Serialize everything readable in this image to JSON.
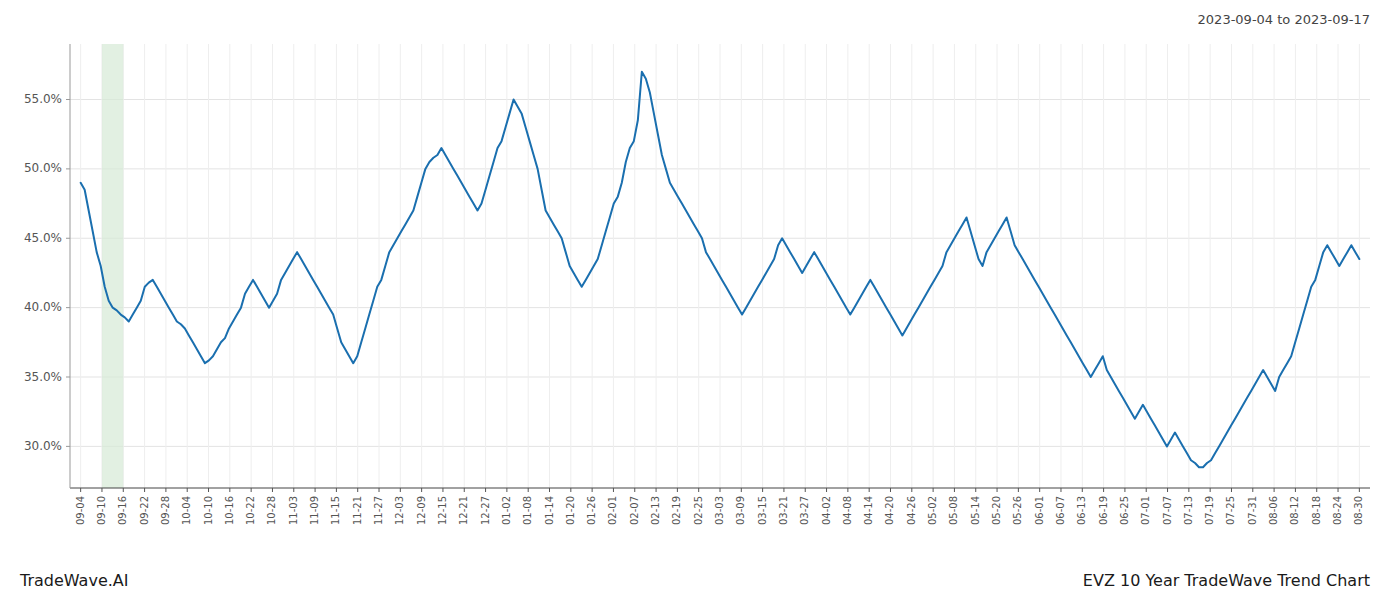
{
  "chart_data": {
    "type": "line",
    "title": "EVZ 10 Year TradeWave Trend Chart",
    "subtitle": "2023-09-04 to 2023-09-17",
    "annotations": [
      "TradeWave.AI"
    ],
    "color": "#1a6faf",
    "grid": true,
    "highlight": {
      "from": "09-10",
      "to": "09-16",
      "color": "#d6ead6"
    },
    "xlim": [
      -0.5,
      60.5
    ],
    "xticks": [
      {
        "value": 0,
        "label": "09-04"
      },
      {
        "value": 1,
        "label": "09-10"
      },
      {
        "value": 2,
        "label": "09-16"
      },
      {
        "value": 3,
        "label": "09-22"
      },
      {
        "value": 4,
        "label": "09-28"
      },
      {
        "value": 5,
        "label": "10-04"
      },
      {
        "value": 6,
        "label": "10-10"
      },
      {
        "value": 7,
        "label": "10-16"
      },
      {
        "value": 8,
        "label": "10-22"
      },
      {
        "value": 9,
        "label": "10-28"
      },
      {
        "value": 10,
        "label": "11-03"
      },
      {
        "value": 11,
        "label": "11-09"
      },
      {
        "value": 12,
        "label": "11-15"
      },
      {
        "value": 13,
        "label": "11-21"
      },
      {
        "value": 14,
        "label": "11-27"
      },
      {
        "value": 15,
        "label": "12-03"
      },
      {
        "value": 16,
        "label": "12-09"
      },
      {
        "value": 17,
        "label": "12-15"
      },
      {
        "value": 18,
        "label": "12-21"
      },
      {
        "value": 19,
        "label": "12-27"
      },
      {
        "value": 20,
        "label": "01-02"
      },
      {
        "value": 21,
        "label": "01-08"
      },
      {
        "value": 22,
        "label": "01-14"
      },
      {
        "value": 23,
        "label": "01-20"
      },
      {
        "value": 24,
        "label": "01-26"
      },
      {
        "value": 25,
        "label": "02-01"
      },
      {
        "value": 26,
        "label": "02-07"
      },
      {
        "value": 27,
        "label": "02-13"
      },
      {
        "value": 28,
        "label": "02-19"
      },
      {
        "value": 29,
        "label": "02-25"
      },
      {
        "value": 30,
        "label": "03-03"
      },
      {
        "value": 31,
        "label": "03-09"
      },
      {
        "value": 32,
        "label": "03-15"
      },
      {
        "value": 33,
        "label": "03-21"
      },
      {
        "value": 34,
        "label": "03-27"
      },
      {
        "value": 35,
        "label": "04-02"
      },
      {
        "value": 36,
        "label": "04-08"
      },
      {
        "value": 37,
        "label": "04-14"
      },
      {
        "value": 38,
        "label": "04-20"
      },
      {
        "value": 39,
        "label": "04-26"
      },
      {
        "value": 40,
        "label": "05-02"
      },
      {
        "value": 41,
        "label": "05-08"
      },
      {
        "value": 42,
        "label": "05-14"
      },
      {
        "value": 43,
        "label": "05-20"
      },
      {
        "value": 44,
        "label": "05-26"
      },
      {
        "value": 45,
        "label": "06-01"
      },
      {
        "value": 46,
        "label": "06-07"
      },
      {
        "value": 47,
        "label": "06-13"
      },
      {
        "value": 48,
        "label": "06-19"
      },
      {
        "value": 49,
        "label": "06-25"
      },
      {
        "value": 50,
        "label": "07-01"
      },
      {
        "value": 51,
        "label": "07-07"
      },
      {
        "value": 52,
        "label": "07-13"
      },
      {
        "value": 53,
        "label": "07-19"
      },
      {
        "value": 54,
        "label": "07-25"
      },
      {
        "value": 55,
        "label": "07-31"
      },
      {
        "value": 56,
        "label": "08-06"
      },
      {
        "value": 57,
        "label": "08-12"
      },
      {
        "value": 58,
        "label": "08-18"
      },
      {
        "value": 59,
        "label": "08-24"
      },
      {
        "value": 60,
        "label": "08-30"
      }
    ],
    "ylim": [
      27.0,
      59.0
    ],
    "yticks": [
      {
        "value": 30.0,
        "label": "30.0%"
      },
      {
        "value": 35.0,
        "label": "35.0%"
      },
      {
        "value": 40.0,
        "label": "40.0%"
      },
      {
        "value": 45.0,
        "label": "45.0%"
      },
      {
        "value": 50.0,
        "label": "50.0%"
      },
      {
        "value": 55.0,
        "label": "55.0%"
      }
    ],
    "values": [
      49.0,
      48.5,
      47.0,
      45.5,
      44.0,
      43.0,
      41.5,
      40.5,
      40.0,
      39.8,
      39.5,
      39.3,
      39.0,
      39.5,
      40.0,
      40.5,
      41.5,
      41.8,
      42.0,
      41.5,
      41.0,
      40.5,
      40.0,
      39.5,
      39.0,
      38.8,
      38.5,
      38.0,
      37.5,
      37.0,
      36.5,
      36.0,
      36.2,
      36.5,
      37.0,
      37.5,
      37.8,
      38.5,
      39.0,
      39.5,
      40.0,
      41.0,
      41.5,
      42.0,
      41.5,
      41.0,
      40.5,
      40.0,
      40.5,
      41.0,
      42.0,
      42.5,
      43.0,
      43.5,
      44.0,
      43.5,
      43.0,
      42.5,
      42.0,
      41.5,
      41.0,
      40.5,
      40.0,
      39.5,
      38.5,
      37.5,
      37.0,
      36.5,
      36.0,
      36.5,
      37.5,
      38.5,
      39.5,
      40.5,
      41.5,
      42.0,
      43.0,
      44.0,
      44.5,
      45.0,
      45.5,
      46.0,
      46.5,
      47.0,
      48.0,
      49.0,
      50.0,
      50.5,
      50.8,
      51.0,
      51.5,
      51.0,
      50.5,
      50.0,
      49.5,
      49.0,
      48.5,
      48.0,
      47.5,
      47.0,
      47.5,
      48.5,
      49.5,
      50.5,
      51.5,
      52.0,
      53.0,
      54.0,
      55.0,
      54.5,
      54.0,
      53.0,
      52.0,
      51.0,
      50.0,
      48.5,
      47.0,
      46.5,
      46.0,
      45.5,
      45.0,
      44.0,
      43.0,
      42.5,
      42.0,
      41.5,
      42.0,
      42.5,
      43.0,
      43.5,
      44.5,
      45.5,
      46.5,
      47.5,
      48.0,
      49.0,
      50.5,
      51.5,
      52.0,
      53.5,
      57.0,
      56.5,
      55.5,
      54.0,
      52.5,
      51.0,
      50.0,
      49.0,
      48.5,
      48.0,
      47.5,
      47.0,
      46.5,
      46.0,
      45.5,
      45.0,
      44.0,
      43.5,
      43.0,
      42.5,
      42.0,
      41.5,
      41.0,
      40.5,
      40.0,
      39.5,
      40.0,
      40.5,
      41.0,
      41.5,
      42.0,
      42.5,
      43.0,
      43.5,
      44.5,
      45.0,
      44.5,
      44.0,
      43.5,
      43.0,
      42.5,
      43.0,
      43.5,
      44.0,
      43.5,
      43.0,
      42.5,
      42.0,
      41.5,
      41.0,
      40.5,
      40.0,
      39.5,
      40.0,
      40.5,
      41.0,
      41.5,
      42.0,
      41.5,
      41.0,
      40.5,
      40.0,
      39.5,
      39.0,
      38.5,
      38.0,
      38.5,
      39.0,
      39.5,
      40.0,
      40.5,
      41.0,
      41.5,
      42.0,
      42.5,
      43.0,
      44.0,
      44.5,
      45.0,
      45.5,
      46.0,
      46.5,
      45.5,
      44.5,
      43.5,
      43.0,
      44.0,
      44.5,
      45.0,
      45.5,
      46.0,
      46.5,
      45.5,
      44.5,
      44.0,
      43.5,
      43.0,
      42.5,
      42.0,
      41.5,
      41.0,
      40.5,
      40.0,
      39.5,
      39.0,
      38.5,
      38.0,
      37.5,
      37.0,
      36.5,
      36.0,
      35.5,
      35.0,
      35.5,
      36.0,
      36.5,
      35.5,
      35.0,
      34.5,
      34.0,
      33.5,
      33.0,
      32.5,
      32.0,
      32.5,
      33.0,
      32.5,
      32.0,
      31.5,
      31.0,
      30.5,
      30.0,
      30.5,
      31.0,
      30.5,
      30.0,
      29.5,
      29.0,
      28.8,
      28.5,
      28.5,
      28.8,
      29.0,
      29.5,
      30.0,
      30.5,
      31.0,
      31.5,
      32.0,
      32.5,
      33.0,
      33.5,
      34.0,
      34.5,
      35.0,
      35.5,
      35.0,
      34.5,
      34.0,
      35.0,
      35.5,
      36.0,
      36.5,
      37.5,
      38.5,
      39.5,
      40.5,
      41.5,
      42.0,
      43.0,
      44.0,
      44.5,
      44.0,
      43.5,
      43.0,
      43.5,
      44.0,
      44.5,
      44.0,
      43.5
    ]
  }
}
